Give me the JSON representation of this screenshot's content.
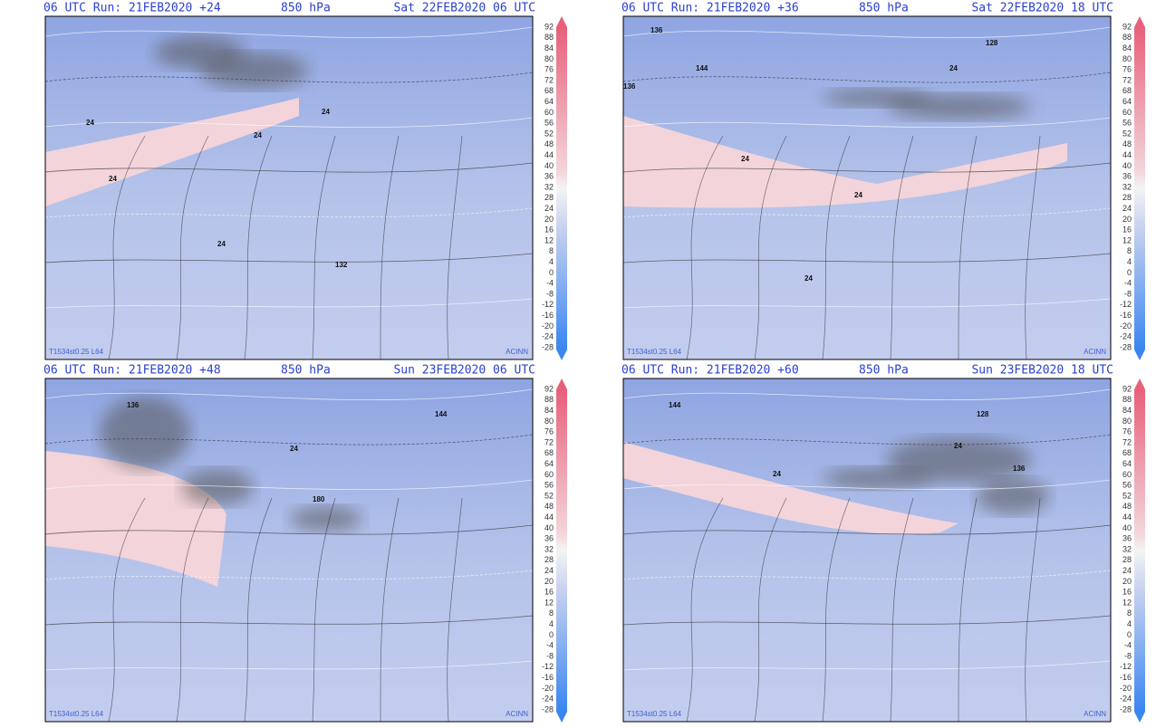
{
  "panels": [
    {
      "header": {
        "run": "06 UTC Run: 21FEB2020 +24",
        "level": "850 hPa",
        "valid": "Sat 22FEB2020 06 UTC"
      },
      "footer_left": "T1534st0.25 L64",
      "footer_right": "ACINN",
      "contour_labels": [
        "24",
        "24",
        "24",
        "24",
        "24",
        "132"
      ]
    },
    {
      "header": {
        "run": "06 UTC Run: 21FEB2020 +36",
        "level": "850 hPa",
        "valid": "Sat 22FEB2020 18 UTC"
      },
      "footer_left": "T1534st0.25 L64",
      "footer_right": "ACINN",
      "contour_labels": [
        "136",
        "144",
        "136",
        "128",
        "24",
        "24",
        "24",
        "24"
      ]
    },
    {
      "header": {
        "run": "06 UTC Run: 21FEB2020 +48",
        "level": "850 hPa",
        "valid": "Sun 23FEB2020 06 UTC"
      },
      "footer_left": "T1534st0.25 L64",
      "footer_right": "ACINN",
      "contour_labels": [
        "136",
        "144",
        "24",
        "180"
      ]
    },
    {
      "header": {
        "run": "06 UTC Run: 21FEB2020 +60",
        "level": "850 hPa",
        "valid": "Sun 23FEB2020 18 UTC"
      },
      "footer_left": "T1534st0.25 L64",
      "footer_right": "ACINN",
      "contour_labels": [
        "144",
        "128",
        "24",
        "136",
        "24"
      ]
    }
  ],
  "colorbar": {
    "labels": [
      92,
      88,
      84,
      80,
      76,
      72,
      68,
      64,
      60,
      56,
      52,
      48,
      44,
      40,
      36,
      32,
      28,
      24,
      20,
      16,
      12,
      8,
      4,
      0,
      -4,
      -8,
      -12,
      -16,
      -20,
      -24,
      -28
    ]
  }
}
